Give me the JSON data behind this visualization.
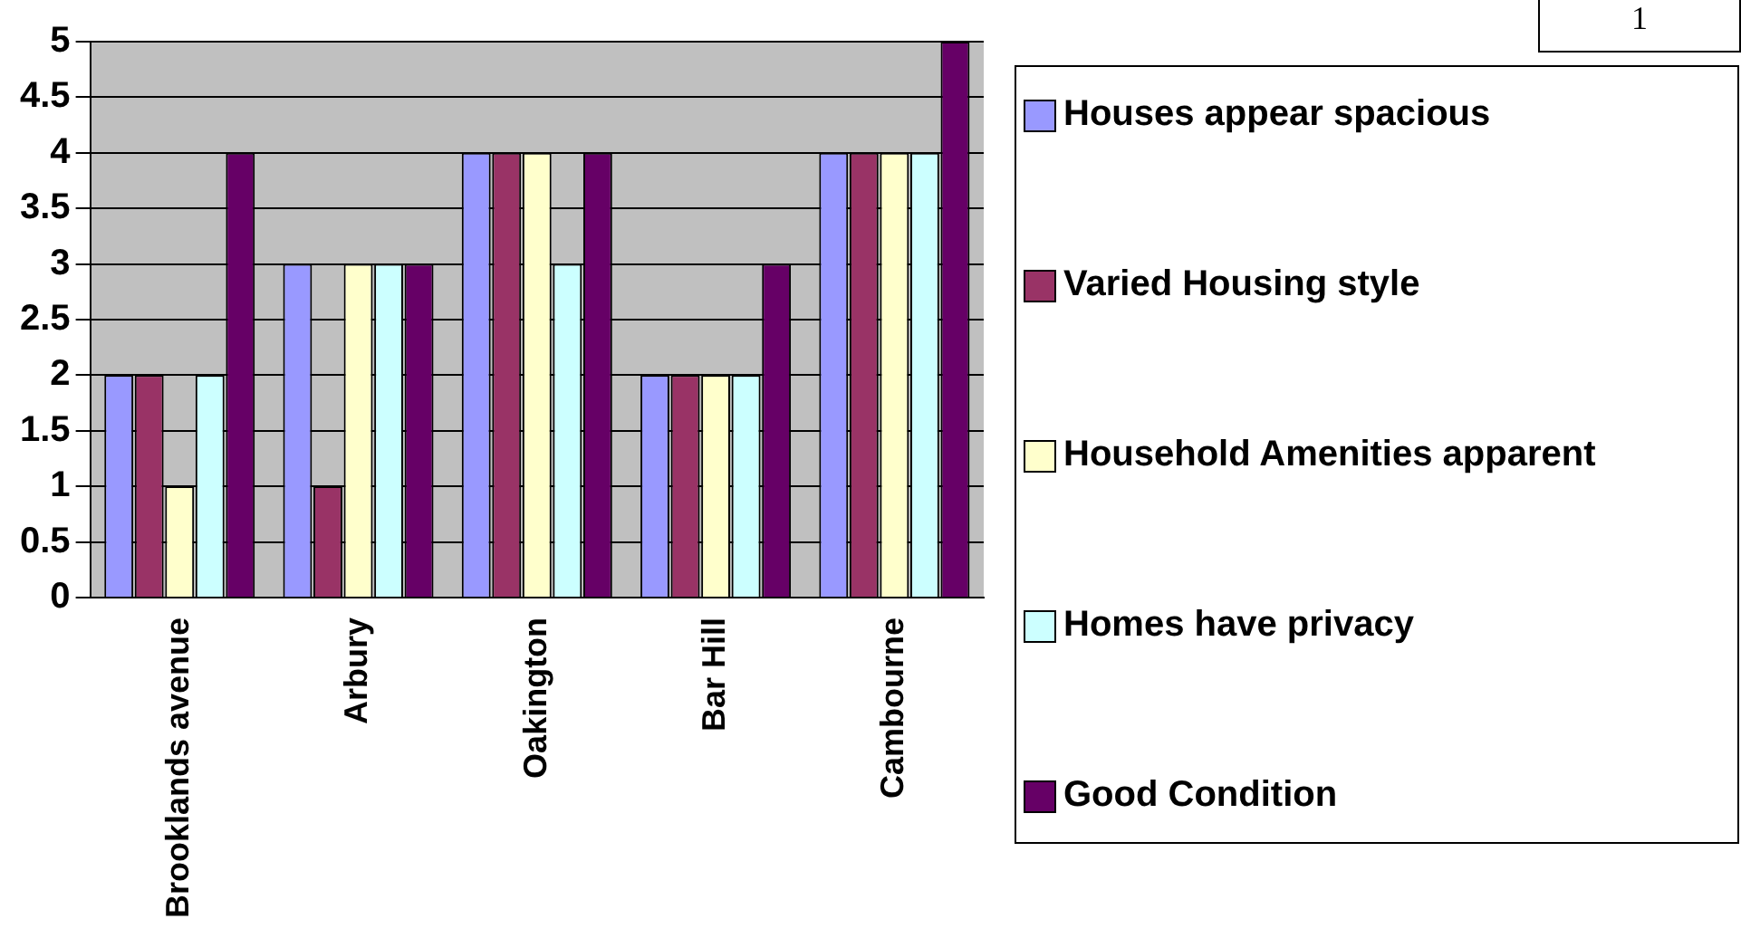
{
  "chart_data": {
    "type": "bar",
    "categories": [
      "Brooklands avenue",
      "Arbury",
      "Oakington",
      "Bar Hill",
      "Cambourne"
    ],
    "series": [
      {
        "name": "Houses appear spacious",
        "color": "#9999ff",
        "values": [
          2,
          3,
          4,
          2,
          4
        ]
      },
      {
        "name": "Varied Housing style",
        "color": "#993366",
        "values": [
          2,
          1,
          4,
          2,
          4
        ]
      },
      {
        "name": "Household Amenities apparent",
        "color": "#ffffcc",
        "values": [
          1,
          3,
          4,
          2,
          4
        ]
      },
      {
        "name": "Homes have privacy",
        "color": "#ccffff",
        "values": [
          2,
          3,
          3,
          2,
          4
        ]
      },
      {
        "name": "Good Condition",
        "color": "#660066",
        "values": [
          4,
          3,
          4,
          3,
          5
        ]
      }
    ],
    "ylim": [
      0,
      5
    ],
    "yticks": [
      0,
      0.5,
      1,
      1.5,
      2,
      2.5,
      3,
      3.5,
      4,
      4.5,
      5
    ],
    "grid": "y",
    "legend": "right",
    "annotations": [
      "1"
    ]
  }
}
